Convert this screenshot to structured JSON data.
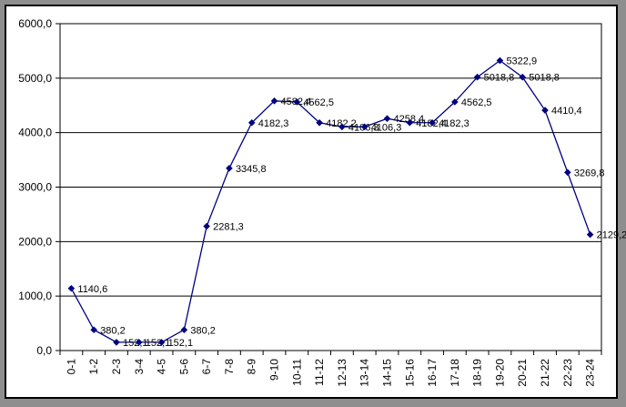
{
  "window": {
    "frame_color": "#8e8e8e",
    "border_color": "#000000",
    "canvas_background": "#ffffff"
  },
  "chart_data": {
    "type": "line",
    "title": "",
    "legend": "none",
    "grid": true,
    "categories": [
      "0-1",
      "1-2",
      "2-3",
      "3-4",
      "4-5",
      "5-6",
      "6-7",
      "7-8",
      "8-9",
      "9-10",
      "10-11",
      "11-12",
      "12-13",
      "13-14",
      "14-15",
      "15-16",
      "16-17",
      "17-18",
      "18-19",
      "19-20",
      "20-21",
      "21-22",
      "22-23",
      "23-24"
    ],
    "values": [
      1140.6,
      380.2,
      152.1,
      152.1,
      152.1,
      380.2,
      2281.3,
      3345.8,
      4182.3,
      4582.4,
      4562.5,
      4182.2,
      4106.3,
      4106.3,
      4258.4,
      4182.4,
      4182.3,
      4562.5,
      5018.8,
      5322.9,
      5018.8,
      4410.4,
      3269.8,
      2129.2
    ],
    "point_labels": [
      "1140,6",
      "380,2",
      "152,1",
      "152,1",
      "152,1",
      "380,2",
      "2281,3",
      "3345,8",
      "4182,3",
      "4582,4",
      "4562,5",
      "4182,2",
      "4106,3",
      "4106,3",
      "4258,4",
      "4182,4",
      "4182,3",
      "4562,5",
      "5018,8",
      "5322,9",
      "5018,8",
      "4410,4",
      "3269,8",
      "2129,2"
    ],
    "xlabel": "",
    "ylabel": "",
    "ylim": [
      0,
      6000
    ],
    "y_ticks": [
      {
        "value": 0,
        "label": "0,0"
      },
      {
        "value": 1000,
        "label": "1000,0"
      },
      {
        "value": 2000,
        "label": "2000,0"
      },
      {
        "value": 3000,
        "label": "3000,0"
      },
      {
        "value": 4000,
        "label": "4000,0"
      },
      {
        "value": 5000,
        "label": "5000,0"
      },
      {
        "value": 6000,
        "label": "6000,0"
      }
    ],
    "line_color": "#000080",
    "marker_color": "#000080",
    "marker_shape": "diamond",
    "label_color": "#000000",
    "axis_color": "#000000",
    "gridline_color": "#000000"
  }
}
